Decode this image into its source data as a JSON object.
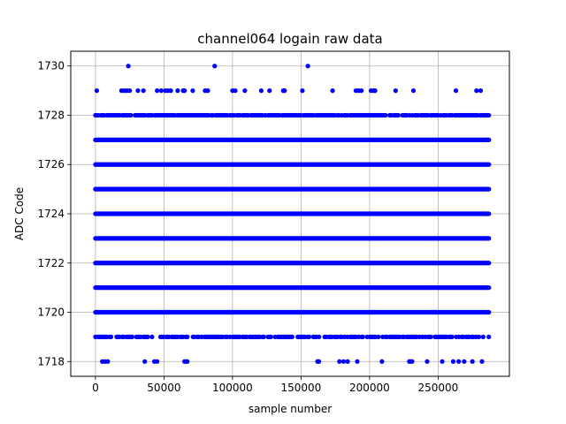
{
  "chart_data": {
    "type": "scatter",
    "title": "channel064 logain raw data",
    "xlabel": "sample number",
    "ylabel": "ADC Code",
    "xlim": [
      -18000,
      302000
    ],
    "ylim": [
      1717.4,
      1730.6
    ],
    "x_ticks": [
      0,
      50000,
      100000,
      150000,
      200000,
      250000
    ],
    "x_tick_labels": [
      "0",
      "50000",
      "100000",
      "150000",
      "200000",
      "250000"
    ],
    "y_ticks": [
      1718,
      1720,
      1722,
      1724,
      1726,
      1728,
      1730
    ],
    "y_tick_labels": [
      "1718",
      "1720",
      "1722",
      "1724",
      "1726",
      "1728",
      "1730"
    ],
    "grid": true,
    "marker_color": "#0000ff",
    "series": [
      {
        "continuous_levels": [
          {
            "y": 1720,
            "x_range": [
              0,
              287000
            ]
          },
          {
            "y": 1721,
            "x_range": [
              0,
              287000
            ]
          },
          {
            "y": 1722,
            "x_range": [
              0,
              287000
            ]
          },
          {
            "y": 1723,
            "x_range": [
              0,
              287000
            ]
          },
          {
            "y": 1724,
            "x_range": [
              0,
              287000
            ]
          },
          {
            "y": 1725,
            "x_range": [
              0,
              287000
            ]
          },
          {
            "y": 1726,
            "x_range": [
              0,
              287000
            ]
          },
          {
            "y": 1727,
            "x_range": [
              0,
              287000
            ]
          }
        ],
        "points": [
          {
            "x": 24000,
            "y": 1730
          },
          {
            "x": 87000,
            "y": 1730
          },
          {
            "x": 155000,
            "y": 1730
          },
          {
            "x": 1000,
            "y": 1729
          },
          {
            "x": 19000,
            "y": 1729
          },
          {
            "x": 21000,
            "y": 1729
          },
          {
            "x": 23000,
            "y": 1729
          },
          {
            "x": 25000,
            "y": 1729
          },
          {
            "x": 31000,
            "y": 1729
          },
          {
            "x": 35000,
            "y": 1729
          },
          {
            "x": 45000,
            "y": 1729
          },
          {
            "x": 48000,
            "y": 1729
          },
          {
            "x": 51000,
            "y": 1729
          },
          {
            "x": 53000,
            "y": 1729
          },
          {
            "x": 55000,
            "y": 1729
          },
          {
            "x": 60000,
            "y": 1729
          },
          {
            "x": 64000,
            "y": 1729
          },
          {
            "x": 65000,
            "y": 1729
          },
          {
            "x": 71000,
            "y": 1729
          },
          {
            "x": 80000,
            "y": 1729
          },
          {
            "x": 82000,
            "y": 1729
          },
          {
            "x": 100000,
            "y": 1729
          },
          {
            "x": 102000,
            "y": 1729
          },
          {
            "x": 109000,
            "y": 1729
          },
          {
            "x": 121000,
            "y": 1729
          },
          {
            "x": 127000,
            "y": 1729
          },
          {
            "x": 137000,
            "y": 1729
          },
          {
            "x": 138000,
            "y": 1729
          },
          {
            "x": 151000,
            "y": 1729
          },
          {
            "x": 173000,
            "y": 1729
          },
          {
            "x": 190000,
            "y": 1729
          },
          {
            "x": 192000,
            "y": 1729
          },
          {
            "x": 194000,
            "y": 1729
          },
          {
            "x": 201000,
            "y": 1729
          },
          {
            "x": 203000,
            "y": 1729
          },
          {
            "x": 204000,
            "y": 1729
          },
          {
            "x": 219000,
            "y": 1729
          },
          {
            "x": 232000,
            "y": 1729
          },
          {
            "x": 263000,
            "y": 1729
          },
          {
            "x": 278000,
            "y": 1729
          },
          {
            "x": 281000,
            "y": 1729
          },
          {
            "x": 5000,
            "y": 1718
          },
          {
            "x": 7000,
            "y": 1718
          },
          {
            "x": 9000,
            "y": 1718
          },
          {
            "x": 36000,
            "y": 1718
          },
          {
            "x": 43000,
            "y": 1718
          },
          {
            "x": 45000,
            "y": 1718
          },
          {
            "x": 65000,
            "y": 1718
          },
          {
            "x": 66000,
            "y": 1718
          },
          {
            "x": 67000,
            "y": 1718
          },
          {
            "x": 162000,
            "y": 1718
          },
          {
            "x": 163000,
            "y": 1718
          },
          {
            "x": 178000,
            "y": 1718
          },
          {
            "x": 181000,
            "y": 1718
          },
          {
            "x": 184000,
            "y": 1718
          },
          {
            "x": 191000,
            "y": 1718
          },
          {
            "x": 209000,
            "y": 1718
          },
          {
            "x": 229000,
            "y": 1718
          },
          {
            "x": 230000,
            "y": 1718
          },
          {
            "x": 231000,
            "y": 1718
          },
          {
            "x": 242000,
            "y": 1718
          },
          {
            "x": 253000,
            "y": 1718
          },
          {
            "x": 261000,
            "y": 1718
          },
          {
            "x": 265000,
            "y": 1718
          },
          {
            "x": 269000,
            "y": 1718
          },
          {
            "x": 275000,
            "y": 1718
          },
          {
            "x": 282000,
            "y": 1718
          }
        ],
        "dense_rows": [
          {
            "y": 1728,
            "x_range": [
              0,
              287000
            ],
            "density": 0.85
          },
          {
            "y": 1719,
            "x_range": [
              0,
              287000
            ],
            "density": 0.7
          }
        ]
      }
    ]
  }
}
